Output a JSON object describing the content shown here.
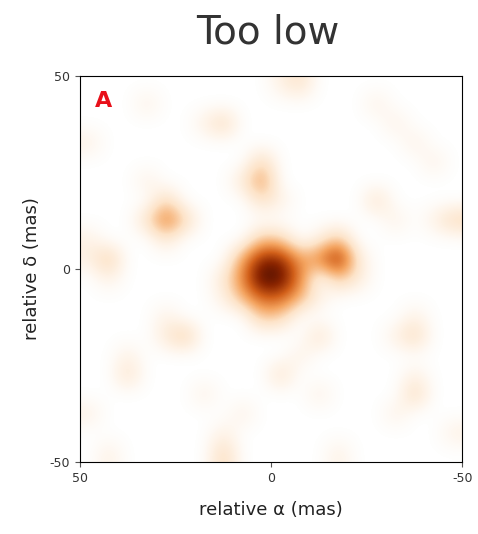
{
  "chart_data": {
    "type": "heatmap",
    "title": "Too low",
    "panel_label": "A",
    "x_label": "relative α (mas)",
    "y_label": "relative δ (mas)",
    "xlim": [
      50,
      -50
    ],
    "ylim": [
      -50,
      50
    ],
    "xticks": [
      50,
      0,
      -50
    ],
    "yticks": [
      -50,
      0,
      50
    ],
    "zlim": [
      0,
      1
    ],
    "cells": [
      [
        0,
        0,
        0,
        0,
        0,
        0,
        0,
        0,
        0,
        0,
        0.1,
        0.2,
        0,
        0,
        0,
        0,
        0,
        0,
        0,
        0
      ],
      [
        0,
        0,
        0,
        0.1,
        0,
        0,
        0,
        0,
        0,
        0,
        0,
        0,
        0,
        0,
        0,
        0.1,
        0,
        0,
        0,
        0
      ],
      [
        0,
        0,
        0,
        0,
        0,
        0,
        0.1,
        0.25,
        0,
        0,
        0,
        0,
        0,
        0,
        0,
        0,
        0.1,
        0,
        0,
        0
      ],
      [
        0.1,
        0,
        0,
        0,
        0,
        0,
        0,
        0,
        0,
        0,
        0,
        0,
        0,
        0,
        0,
        0,
        0,
        0.1,
        0,
        0
      ],
      [
        0,
        0,
        0,
        0,
        0,
        0,
        0,
        0,
        0,
        0.25,
        0,
        0,
        0,
        0,
        0,
        0,
        0,
        0,
        0.1,
        0
      ],
      [
        0,
        0,
        0,
        0.1,
        0,
        0,
        0,
        0,
        0.15,
        0.45,
        0,
        0,
        0,
        0,
        0,
        0,
        0,
        0,
        0,
        0
      ],
      [
        0,
        0,
        0,
        0,
        0.25,
        0,
        0,
        0,
        0,
        0.2,
        0.1,
        0,
        0,
        0,
        0,
        0.2,
        0,
        0,
        0,
        0
      ],
      [
        0,
        0,
        0,
        0.2,
        0.55,
        0.25,
        0,
        0,
        0,
        0,
        0,
        0,
        0,
        0,
        0,
        0,
        0.1,
        0,
        0.1,
        0.25
      ],
      [
        0.1,
        0,
        0,
        0,
        0.15,
        0,
        0,
        0,
        0,
        0.3,
        0.25,
        0,
        0.1,
        0.3,
        0,
        0,
        0,
        0,
        0,
        0
      ],
      [
        0.1,
        0.3,
        0,
        0,
        0,
        0,
        0,
        0,
        0.4,
        0.8,
        0.8,
        0.4,
        0.5,
        0.85,
        0.15,
        0,
        0,
        0,
        0,
        0
      ],
      [
        0,
        0.1,
        0,
        0,
        0,
        0,
        0,
        0.15,
        0.5,
        1.0,
        0.95,
        0.5,
        0,
        0.3,
        0.15,
        0,
        0,
        0,
        0,
        0
      ],
      [
        0,
        0,
        0,
        0,
        0,
        0,
        0,
        0.1,
        0.35,
        0.6,
        0.6,
        0.35,
        0.1,
        0,
        0,
        0,
        0,
        0,
        0,
        0
      ],
      [
        0,
        0,
        0,
        0,
        0.1,
        0,
        0,
        0,
        0,
        0.3,
        0.25,
        0,
        0,
        0,
        0,
        0,
        0,
        0.1,
        0,
        0
      ],
      [
        0,
        0,
        0,
        0,
        0.15,
        0.3,
        0,
        0,
        0,
        0,
        0,
        0,
        0.2,
        0,
        0,
        0,
        0.1,
        0.25,
        0,
        0
      ],
      [
        0,
        0,
        0.1,
        0,
        0,
        0,
        0,
        0,
        0,
        0,
        0,
        0.1,
        0,
        0,
        0,
        0,
        0,
        0,
        0,
        0
      ],
      [
        0,
        0,
        0.2,
        0,
        0,
        0,
        0,
        0,
        0,
        0,
        0.2,
        0,
        0,
        0,
        0,
        0,
        0,
        0.1,
        0,
        0
      ],
      [
        0,
        0,
        0,
        0,
        0,
        0,
        0.1,
        0,
        0,
        0,
        0,
        0,
        0.1,
        0,
        0,
        0,
        0,
        0.25,
        0,
        0
      ],
      [
        0.1,
        0,
        0,
        0,
        0,
        0,
        0,
        0,
        0.1,
        0,
        0,
        0,
        0,
        0,
        0,
        0,
        0.1,
        0,
        0,
        0
      ],
      [
        0,
        0,
        0,
        0,
        0,
        0,
        0,
        0.1,
        0,
        0,
        0,
        0,
        0,
        0,
        0,
        0,
        0,
        0,
        0,
        0.1
      ],
      [
        0,
        0.1,
        0,
        0,
        0,
        0,
        0,
        0.25,
        0,
        0,
        0,
        0,
        0,
        0.1,
        0,
        0,
        0,
        0,
        0,
        0
      ]
    ]
  }
}
